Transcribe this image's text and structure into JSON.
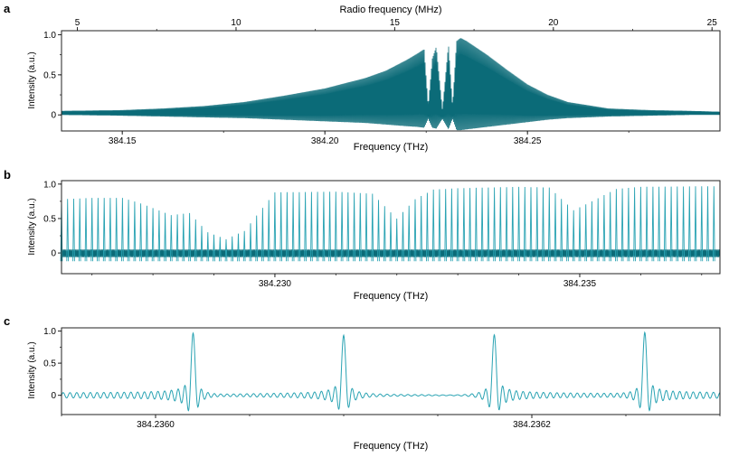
{
  "colors": {
    "signal": "#0b6b78",
    "signal_light": "#2aa3b3",
    "axis": "#222222"
  },
  "chart_data": [
    {
      "panel": "a",
      "type": "line",
      "xlabel": "Frequency (THz)",
      "ylabel": "Intensity (a.u.)",
      "top_xlabel": "Radio frequency (MHz)",
      "xlim": [
        384.135,
        384.2975
      ],
      "ylim": [
        -0.2,
        1.05
      ],
      "xticks": [
        384.15,
        384.2,
        384.25
      ],
      "xtick_labels": [
        "384.15",
        "384.20",
        "384.25"
      ],
      "top_xlim": [
        4.5,
        25.25
      ],
      "top_xticks": [
        5,
        10,
        15,
        20,
        25
      ],
      "top_xtick_labels": [
        "5",
        "10",
        "15",
        "20",
        "25"
      ],
      "yticks": [
        0,
        0.5,
        1.0
      ],
      "ytick_labels": [
        "0",
        "0.5",
        "1.0"
      ],
      "series": [
        {
          "style": "envelope",
          "x": [
            384.135,
            384.15,
            384.16,
            384.17,
            384.18,
            384.19,
            384.2,
            384.21,
            384.215,
            384.22,
            384.223,
            384.2245,
            384.2255,
            384.2265,
            384.2275,
            384.229,
            384.2305,
            384.2315,
            384.2325,
            384.2335,
            384.235,
            384.24,
            384.245,
            384.25,
            384.255,
            384.26,
            384.27,
            384.28,
            384.29,
            384.2975
          ],
          "upper": [
            0.05,
            0.06,
            0.08,
            0.11,
            0.16,
            0.24,
            0.33,
            0.46,
            0.55,
            0.68,
            0.77,
            0.82,
            0.1,
            0.7,
            0.85,
            0.06,
            0.88,
            0.1,
            0.92,
            0.96,
            0.92,
            0.75,
            0.56,
            0.38,
            0.25,
            0.16,
            0.08,
            0.06,
            0.05,
            0.04
          ],
          "lower": [
            0.0,
            -0.01,
            -0.02,
            -0.03,
            -0.04,
            -0.06,
            -0.08,
            -0.1,
            -0.12,
            -0.14,
            -0.15,
            -0.16,
            -0.05,
            -0.16,
            -0.17,
            -0.05,
            -0.18,
            -0.05,
            -0.19,
            -0.19,
            -0.18,
            -0.15,
            -0.12,
            -0.09,
            -0.06,
            -0.04,
            -0.02,
            -0.01,
            0.0,
            0.0
          ]
        }
      ]
    },
    {
      "panel": "b",
      "type": "line",
      "xlabel": "Frequency (THz)",
      "ylabel": "Intensity (a.u.)",
      "xlim": [
        384.2265,
        384.2373
      ],
      "ylim": [
        -0.3,
        1.05
      ],
      "xticks": [
        384.23,
        384.235
      ],
      "xtick_labels": [
        "384.230",
        "384.235"
      ],
      "yticks": [
        0,
        0.5,
        1.0
      ],
      "ytick_labels": [
        "0",
        "0.5",
        "1.0"
      ],
      "series": [
        {
          "style": "peaks",
          "peak_start": 384.2265,
          "peak_spacing": 0.0001,
          "peak_count": 108,
          "envelope_x": [
            384.2265,
            384.227,
            384.2275,
            384.2278,
            384.2283,
            384.2286,
            384.2289,
            384.2292,
            384.2295,
            384.23,
            384.231,
            384.2316,
            384.232,
            384.2323,
            384.2326,
            384.233,
            384.234,
            384.2345,
            384.2349,
            384.2352,
            384.2356,
            384.236,
            384.2373
          ],
          "envelope_y": [
            0.78,
            0.8,
            0.8,
            0.72,
            0.55,
            0.58,
            0.3,
            0.2,
            0.32,
            0.88,
            0.89,
            0.86,
            0.5,
            0.78,
            0.92,
            0.94,
            0.96,
            0.95,
            0.62,
            0.75,
            0.93,
            0.96,
            0.97
          ]
        }
      ]
    },
    {
      "panel": "c",
      "type": "line",
      "xlabel": "Frequency (THz)",
      "ylabel": "Intensity (a.u.)",
      "xlim": [
        384.23595,
        384.2363
      ],
      "ylim": [
        -0.3,
        1.05
      ],
      "xticks": [
        384.236,
        384.2362
      ],
      "xtick_labels": [
        "384.2360",
        "384.2362"
      ],
      "yticks": [
        0,
        0.5,
        1.0
      ],
      "ytick_labels": [
        "0",
        "0.5",
        "1.0"
      ],
      "series": [
        {
          "style": "sinc-peaks",
          "peak_x": [
            384.23602,
            384.2361,
            384.23618,
            384.23626
          ],
          "peak_y": [
            0.95,
            0.95,
            0.95,
            0.95
          ]
        }
      ]
    }
  ]
}
